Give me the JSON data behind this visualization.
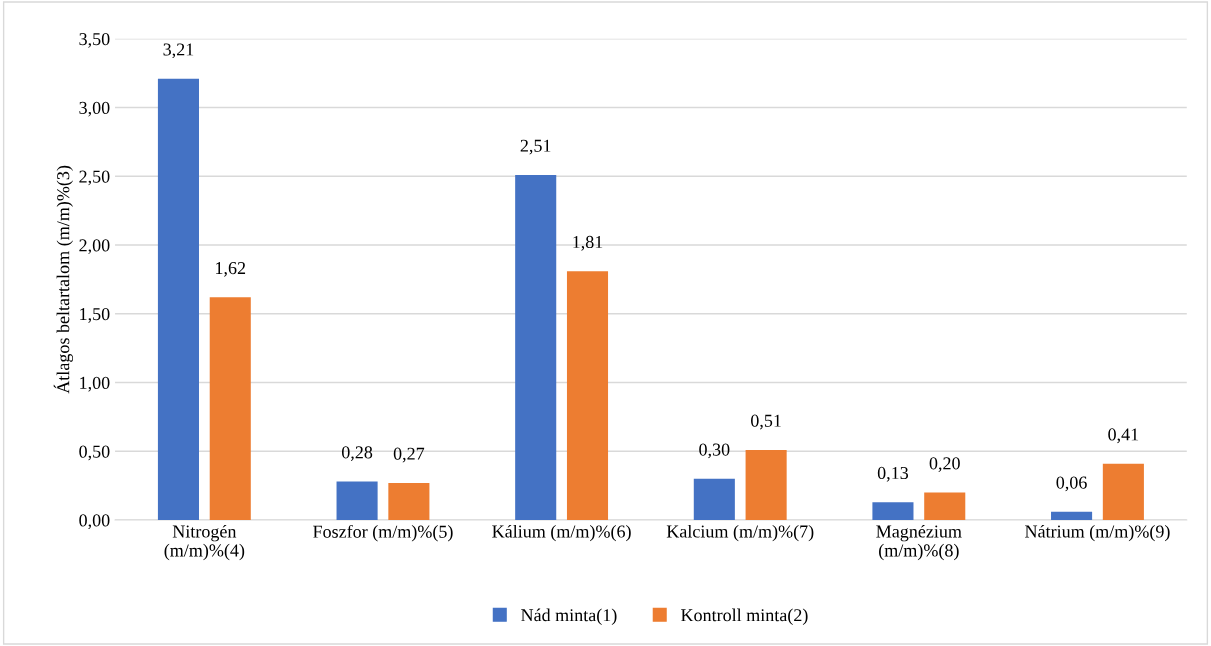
{
  "chart_data": {
    "type": "bar",
    "ylabel": "Átlagos beltartalom (m/m)%(3)",
    "categories": [
      "Nitrogén\n(m/m)%(4)",
      "Foszfor (m/m)%(5)",
      "Kálium (m/m)%(6)",
      "Kalcium (m/m)%(7)",
      "Magnézium\n(m/m)%(8)",
      "Nátrium (m/m)%(9)"
    ],
    "series": [
      {
        "name": "Nád minta(1)",
        "color": "#4472c4",
        "values": [
          3.21,
          0.28,
          2.51,
          0.3,
          0.13,
          0.06
        ],
        "value_labels": [
          "3,21",
          "0,28",
          "2,51",
          "0,30",
          "0,13",
          "0,06"
        ]
      },
      {
        "name": "Kontroll minta(2)",
        "color": "#ed7d31",
        "values": [
          1.62,
          0.27,
          1.81,
          0.51,
          0.2,
          0.41
        ],
        "value_labels": [
          "1,62",
          "0,27",
          "1,81",
          "0,51",
          "0,20",
          "0,41"
        ]
      }
    ],
    "ylim": [
      0,
      3.5
    ],
    "yticks": [
      {
        "value": 0,
        "label": "0,00"
      },
      {
        "value": 0.5,
        "label": "0,50"
      },
      {
        "value": 1,
        "label": "1,00"
      },
      {
        "value": 1.5,
        "label": "1,50"
      },
      {
        "value": 2,
        "label": "2,00"
      },
      {
        "value": 2.5,
        "label": "2,50"
      },
      {
        "value": 3,
        "label": "3,00"
      },
      {
        "value": 3.5,
        "label": "3,50"
      }
    ],
    "grid": "y",
    "legend": "bottom"
  }
}
